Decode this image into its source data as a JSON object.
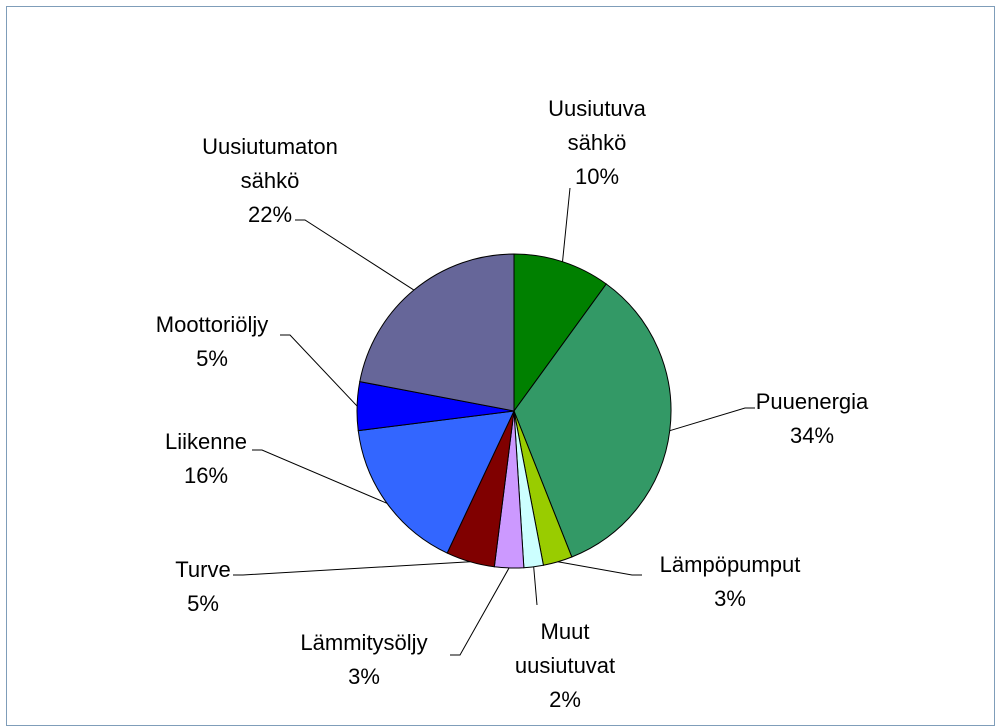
{
  "chart_data": {
    "type": "pie",
    "categories": [
      "Uusiutuva sähkö",
      "Puuenergia",
      "Lämpöpumput",
      "Muut uusiutuvat",
      "Lämmitysöljy",
      "Turve",
      "Liikenne",
      "Moottoriöljy",
      "Uusiutumaton sähkö"
    ],
    "values": [
      10,
      34,
      3,
      2,
      3,
      5,
      16,
      5,
      22
    ],
    "value_labels": [
      "10%",
      "34%",
      "3%",
      "2%",
      "3%",
      "5%",
      "16%",
      "5%",
      "22%"
    ],
    "colors": [
      "#008000",
      "#339966",
      "#99cc00",
      "#ccffff",
      "#cc99ff",
      "#800000",
      "#3366ff",
      "#0000ff",
      "#666699"
    ]
  }
}
